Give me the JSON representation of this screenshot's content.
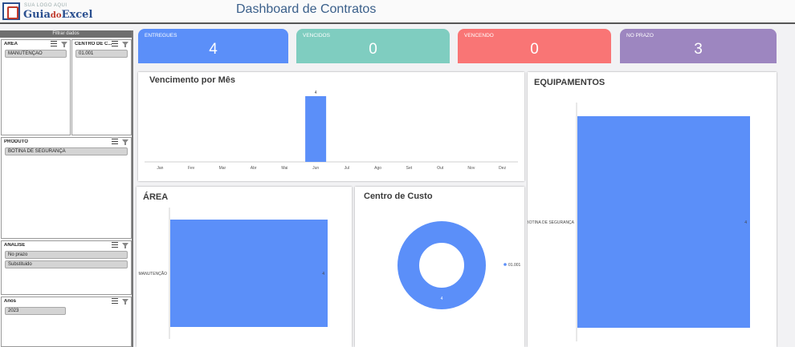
{
  "header": {
    "logo_small": "SUA LOGO AQUI",
    "logo_main_1": "Guia",
    "logo_main_do": "do",
    "logo_main_2": "Excel",
    "title": "Dashboard de Contratos"
  },
  "filters": {
    "bar_label": "Filtrar dados",
    "area": {
      "title": "AREA",
      "items": [
        "MANUTENÇÃO"
      ]
    },
    "centro": {
      "title": "CENTRO DE C...",
      "items": [
        "01.001"
      ]
    },
    "produto": {
      "title": "PRODUTO",
      "items": [
        "BOTINA DE SEGURANÇA"
      ]
    },
    "analise": {
      "title": "ANÁLISE",
      "items": [
        "No prazo",
        "Substituido"
      ]
    },
    "anos": {
      "title": "Anos",
      "items": [
        "2023"
      ]
    }
  },
  "kpis": [
    {
      "label": "ENTREGUES",
      "value": "4",
      "color": "#5b8ff9"
    },
    {
      "label": "VENCIDOS",
      "value": "0",
      "color": "#7fcdc0"
    },
    {
      "label": "VENCENDO",
      "value": "0",
      "color": "#f97575"
    },
    {
      "label": "NO PRAZO",
      "value": "3",
      "color": "#9d86c0"
    }
  ],
  "chart_data": [
    {
      "type": "bar",
      "title": "Vencimento por Mês",
      "categories": [
        "Jan",
        "Fev",
        "Mar",
        "Abr",
        "Mai",
        "Jun",
        "Jul",
        "Ago",
        "Set",
        "Out",
        "Nov",
        "Dez"
      ],
      "values": [
        0,
        0,
        0,
        0,
        0,
        4,
        0,
        0,
        0,
        0,
        0,
        0
      ],
      "ylim": [
        0,
        4
      ],
      "data_labels": [
        "",
        "",
        "",
        "",
        "",
        "4",
        "",
        "",
        "",
        "",
        "",
        ""
      ],
      "color": "#5b8ff9"
    },
    {
      "type": "bar",
      "orientation": "horizontal",
      "title": "EQUIPAMENTOS",
      "categories": [
        "BOTINA DE SEGURANÇA"
      ],
      "values": [
        4
      ],
      "data_labels": [
        "4"
      ],
      "color": "#5b8ff9"
    },
    {
      "type": "bar",
      "orientation": "horizontal",
      "title": "ÁREA",
      "categories": [
        "MANUTENÇÃO"
      ],
      "values": [
        4
      ],
      "data_labels": [
        "4"
      ],
      "color": "#5b8ff9"
    },
    {
      "type": "pie",
      "style": "donut",
      "title": "Centro de Custo",
      "categories": [
        "01.001"
      ],
      "values": [
        4
      ],
      "data_labels": [
        "4"
      ],
      "legend": "right",
      "color": "#5b8ff9"
    }
  ]
}
